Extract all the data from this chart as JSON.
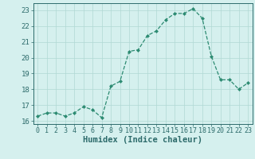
{
  "x": [
    0,
    1,
    2,
    3,
    4,
    5,
    6,
    7,
    8,
    9,
    10,
    11,
    12,
    13,
    14,
    15,
    16,
    17,
    18,
    19,
    20,
    21,
    22,
    23
  ],
  "y": [
    16.3,
    16.5,
    16.5,
    16.3,
    16.5,
    16.9,
    16.7,
    16.2,
    18.2,
    18.5,
    20.4,
    20.5,
    21.4,
    21.7,
    22.4,
    22.8,
    22.8,
    23.1,
    22.5,
    20.1,
    18.6,
    18.6,
    18.0,
    18.4
  ],
  "line_color": "#2d8b72",
  "marker": "D",
  "marker_size": 2.0,
  "bg_color": "#d5f0ee",
  "grid_color": "#b0d9d4",
  "xlabel": "Humidex (Indice chaleur)",
  "xlabel_fontsize": 7.5,
  "xlabel_fontweight": "bold",
  "yticks": [
    16,
    17,
    18,
    19,
    20,
    21,
    22,
    23
  ],
  "xticks": [
    0,
    1,
    2,
    3,
    4,
    5,
    6,
    7,
    8,
    9,
    10,
    11,
    12,
    13,
    14,
    15,
    16,
    17,
    18,
    19,
    20,
    21,
    22,
    23
  ],
  "ylim": [
    15.8,
    23.45
  ],
  "xlim": [
    -0.5,
    23.5
  ],
  "tick_fontsize": 6.0,
  "tick_color": "#2d6b6b",
  "spine_color": "#2d6b6b",
  "linewidth": 0.9,
  "linestyle": "--"
}
